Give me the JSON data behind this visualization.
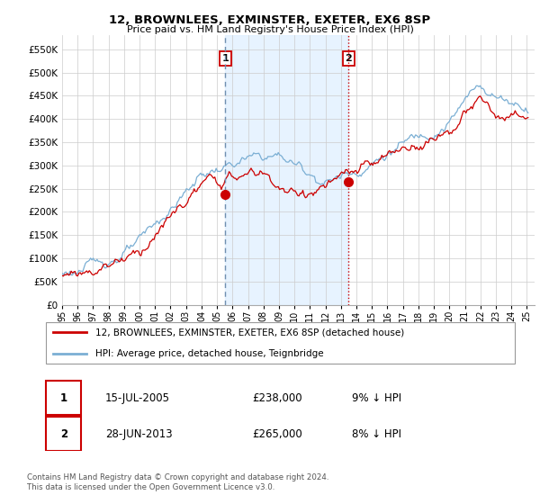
{
  "title": "12, BROWNLEES, EXMINSTER, EXETER, EX6 8SP",
  "subtitle": "Price paid vs. HM Land Registry's House Price Index (HPI)",
  "legend_line1": "12, BROWNLEES, EXMINSTER, EXETER, EX6 8SP (detached house)",
  "legend_line2": "HPI: Average price, detached house, Teignbridge",
  "transaction1_date": "15-JUL-2005",
  "transaction1_price": "£238,000",
  "transaction1_hpi": "9% ↓ HPI",
  "transaction1_year": 2005.54,
  "transaction1_value": 238000,
  "transaction2_date": "28-JUN-2013",
  "transaction2_price": "£265,000",
  "transaction2_hpi": "8% ↓ HPI",
  "transaction2_year": 2013.49,
  "transaction2_value": 265000,
  "footer": "Contains HM Land Registry data © Crown copyright and database right 2024.\nThis data is licensed under the Open Government Licence v3.0.",
  "hpi_color": "#7bafd4",
  "price_color": "#cc0000",
  "vline1_color": "#7090b0",
  "vline2_color": "#cc0000",
  "shade_color": "#ddeeff",
  "ylim": [
    0,
    580000
  ],
  "yticks": [
    0,
    50000,
    100000,
    150000,
    200000,
    250000,
    300000,
    350000,
    400000,
    450000,
    500000,
    550000
  ],
  "background_color": "#ffffff",
  "grid_color": "#cccccc"
}
